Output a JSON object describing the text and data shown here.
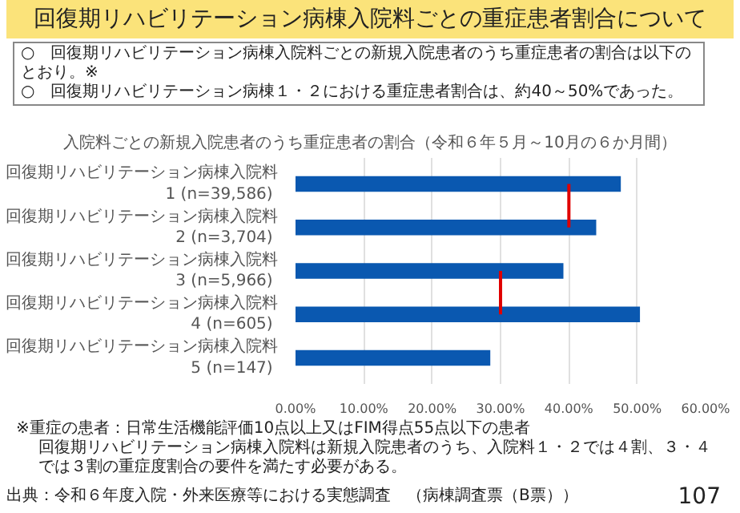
{
  "chart_data": {
    "type": "bar",
    "orientation": "horizontal",
    "title": "回復期リハビリテーション病棟入院料ごとの重症患者割合について",
    "subtitle": "入院料ごとの新規入院患者のうち重症患者の割合（令和６年５月～10月の６か月間）",
    "annotations": [
      "○　回復期リハビリテーション病棟入院料ごとの新規入院患者のうち重症患者の割合は以下のとおり。※",
      "○　回復期リハビリテーション病棟１・２における重症患者割合は、約40～50%であった。",
      "※重症の患者：日常生活機能評価10点以上又はFIM得点55点以下の患者",
      "回復期リハビリテーション病棟入院料は新規入院患者のうち、入院料１・２では４割、３・４では３割の重症度割合の要件を満たす必要がある。",
      "出典：令和６年度入院・外来医療等における実態調査　（病棟調査票（B票））",
      "107"
    ],
    "categories": [
      "回復期リハビリテーション病棟入院料 1 (n=39,586)",
      "回復期リハビリテーション病棟入院料 2 (n=3,704)",
      "回復期リハビリテーション病棟入院料 3 (n=5,966)",
      "回復期リハビリテーション病棟入院料 4 (n=605)",
      "回復期リハビリテーション病棟入院料 5 (n=147)"
    ],
    "series": [
      {
        "color": "#0a58b0",
        "values": [
          47.6,
          44.0,
          39.2,
          50.4,
          28.5
        ]
      },
      {
        "type": "line",
        "color": "#e00000",
        "values": [
          40,
          40,
          null,
          null,
          null
        ]
      },
      {
        "type": "line",
        "color": "#e00000",
        "values": [
          null,
          null,
          30,
          30,
          null
        ]
      }
    ],
    "xlim": [
      0,
      60
    ],
    "xticks": [
      {
        "value": 0,
        "label": "0.00%"
      },
      {
        "value": 10,
        "label": "10.00%"
      },
      {
        "value": 20,
        "label": "20.00%"
      },
      {
        "value": 30,
        "label": "30.00%"
      },
      {
        "value": 40,
        "label": "40.00%"
      },
      {
        "value": 50,
        "label": "50.00%"
      },
      {
        "value": 60,
        "label": "60.00%"
      }
    ],
    "grid": "x"
  }
}
